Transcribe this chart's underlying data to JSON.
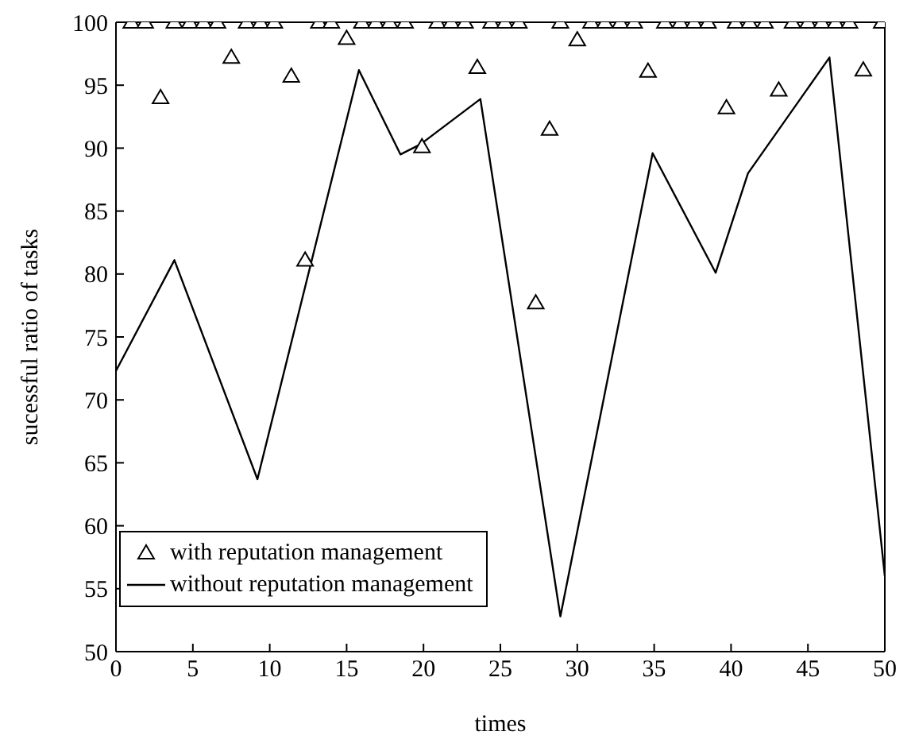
{
  "chart_data": {
    "type": "scatter",
    "xlabel": "times",
    "ylabel": "sucessful ratio of tasks",
    "xlim": [
      0,
      50
    ],
    "ylim": [
      50,
      100
    ],
    "xticks": [
      0,
      5,
      10,
      15,
      20,
      25,
      30,
      35,
      40,
      45,
      50
    ],
    "yticks": [
      50,
      55,
      60,
      65,
      70,
      75,
      80,
      85,
      90,
      95,
      100
    ],
    "legend": "bottom left",
    "series": [
      {
        "name": "with reputation management",
        "marker": "triangle",
        "color": "#000000",
        "x": [
          1.0,
          1.9,
          2.9,
          3.8,
          4.8,
          5.7,
          6.6,
          7.5,
          8.5,
          9.4,
          10.3,
          11.4,
          12.3,
          13.2,
          14.0,
          15.0,
          16.0,
          16.9,
          17.8,
          18.8,
          19.9,
          20.9,
          21.8,
          22.7,
          23.5,
          24.4,
          25.3,
          26.2,
          27.3,
          28.2,
          28.9,
          30.0,
          30.9,
          31.8,
          32.8,
          33.7,
          34.6,
          35.7,
          36.7,
          37.6,
          38.5,
          39.7,
          40.3,
          41.2,
          42.2,
          43.1,
          44.0,
          45.0,
          45.9,
          46.8,
          47.7,
          48.6,
          49.8
        ],
        "values": [
          100,
          100,
          94,
          100,
          100,
          100,
          100,
          97.2,
          100,
          100,
          100,
          95.7,
          81.1,
          100,
          100,
          98.7,
          100,
          100,
          100,
          100,
          90.1,
          100,
          100,
          100,
          96.4,
          100,
          100,
          100,
          77.7,
          91.5,
          100,
          98.6,
          100,
          100,
          100,
          100,
          96.1,
          100,
          100,
          100,
          100,
          93.2,
          100,
          100,
          100,
          94.6,
          100,
          100,
          100,
          100,
          100,
          96.2,
          100
        ]
      },
      {
        "name": "without reputation management",
        "type": "line",
        "marker": "none",
        "color": "#000000",
        "x": [
          0,
          3.8,
          9.2,
          15.8,
          18.5,
          19.8,
          23.7,
          28.9,
          34.9,
          39.0,
          41.1,
          46.4,
          50
        ],
        "values": [
          72.3,
          81.1,
          63.7,
          96.2,
          89.5,
          90.3,
          93.9,
          52.8,
          89.6,
          80.1,
          88.0,
          97.2,
          56
        ]
      }
    ]
  }
}
